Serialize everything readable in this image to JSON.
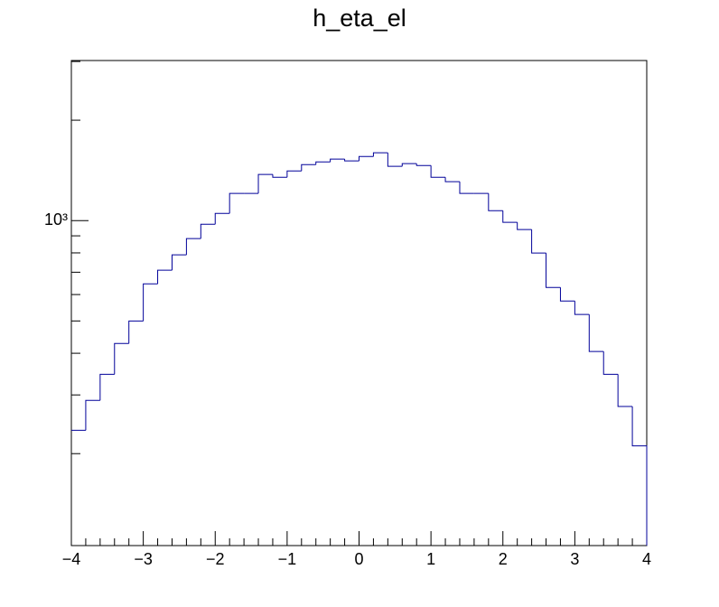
{
  "chart_data": {
    "type": "histogram",
    "title": "h_eta_el",
    "log_y": true,
    "color": "#000099",
    "bins": [
      -4.0,
      -3.8,
      -3.6,
      -3.4,
      -3.2,
      -3.0,
      -2.8,
      -2.6,
      -2.4,
      -2.2,
      -2.0,
      -1.8,
      -1.6,
      -1.4,
      -1.2,
      -1.0,
      -0.8,
      -0.6,
      -0.4,
      -0.2,
      0.0,
      0.2,
      0.4,
      0.6,
      0.8,
      1.0,
      1.2,
      1.4,
      1.6,
      1.8,
      2.0,
      2.2,
      2.4,
      2.6,
      2.8,
      3.0,
      3.2,
      3.4,
      3.6,
      3.8,
      4.0
    ],
    "values": [
      235,
      289,
      346,
      428,
      500,
      646,
      710,
      789,
      883,
      975,
      1051,
      1206,
      1206,
      1375,
      1349,
      1409,
      1472,
      1500,
      1529,
      1510,
      1557,
      1597,
      1454,
      1482,
      1463,
      1349,
      1308,
      1206,
      1206,
      1071,
      988,
      940,
      799,
      630,
      574,
      523,
      405,
      346,
      277,
      211
    ],
    "xlim": [
      -4,
      4
    ],
    "xticks": [
      {
        "value": -4,
        "label": "−4"
      },
      {
        "value": -3,
        "label": "−3"
      },
      {
        "value": -2,
        "label": "−2"
      },
      {
        "value": -1,
        "label": "−1"
      },
      0,
      1,
      2,
      3,
      4
    ],
    "xminor_ticks": [
      -3.8,
      -3.6,
      -3.4,
      -3.2,
      -2.8,
      -2.6,
      -2.4,
      -2.2,
      -1.8,
      -1.6,
      -1.4,
      -1.2,
      -0.8,
      -0.6,
      -0.4,
      -0.2,
      0.2,
      0.4,
      0.6,
      0.8,
      1.2,
      1.4,
      1.6,
      1.8,
      2.2,
      2.4,
      2.6,
      2.8,
      3.2,
      3.4,
      3.6,
      3.8
    ],
    "ylim": [
      106,
      3020
    ],
    "yticks": [
      {
        "value": 1000,
        "label": "10³"
      }
    ],
    "yminor_ticks": [
      200,
      300,
      400,
      500,
      600,
      700,
      800,
      900,
      2000,
      3000
    ]
  }
}
